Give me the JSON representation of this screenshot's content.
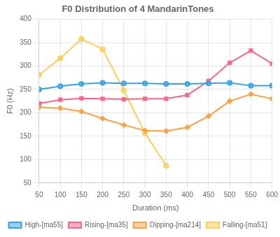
{
  "chart_data": {
    "type": "line",
    "title": "F0 Distribution of 4 MandarinTones",
    "xlabel": "Duration (ms)",
    "ylabel": "F0 (Hz)",
    "x": [
      50,
      100,
      150,
      200,
      250,
      300,
      350,
      400,
      450,
      500,
      550,
      600
    ],
    "series": [
      {
        "name": "High-[ma55]",
        "marker": "circle",
        "values": [
          250,
          257,
          262,
          264,
          263,
          263,
          262,
          262,
          263,
          264,
          258,
          258
        ]
      },
      {
        "name": "Rising-[ma35]",
        "marker": "square",
        "values": [
          220,
          228,
          231,
          230,
          229,
          230,
          230,
          238,
          268,
          307,
          333,
          305
        ]
      },
      {
        "name": "Dipping-[ma214]",
        "marker": "diamond",
        "values": [
          212,
          210,
          203,
          188,
          174,
          162,
          161,
          169,
          193,
          225,
          240,
          230
        ]
      },
      {
        "name": "Falling-[ma51]",
        "marker": "circle",
        "values": [
          281,
          317,
          358,
          336,
          248,
          157,
          87,
          null,
          null,
          null,
          null,
          null
        ]
      }
    ],
    "xlim": [
      50,
      600
    ],
    "ylim": [
      50,
      400
    ],
    "xticks": [
      50,
      100,
      150,
      200,
      250,
      300,
      350,
      400,
      450,
      500,
      550,
      600
    ],
    "yticks": [
      50,
      100,
      150,
      200,
      250,
      300,
      350,
      400
    ],
    "grid": true,
    "legend": "bottom"
  }
}
